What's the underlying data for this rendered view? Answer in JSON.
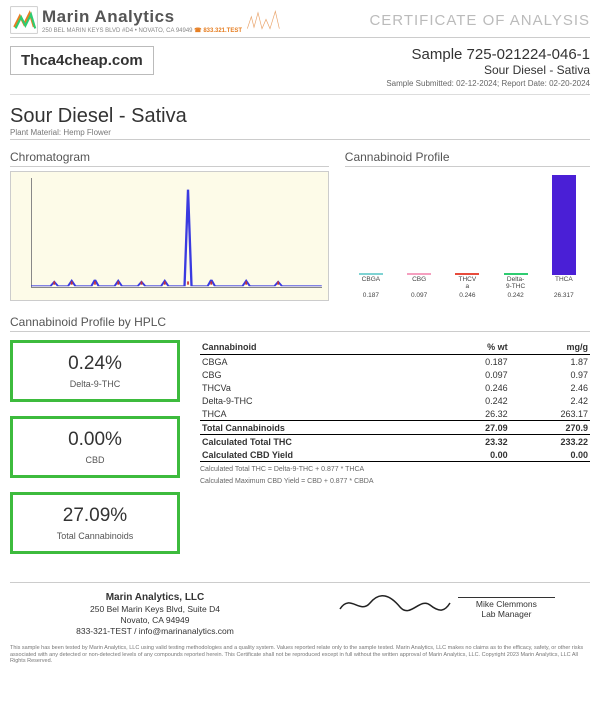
{
  "header": {
    "brand_name": "Marin Analytics",
    "brand_addr": "250 BEL MARIN KEYS BLVD #D4 • NOVATO, CA 94949 ",
    "brand_phone": "☎ 833.321.TEST",
    "coa": "CERTIFICATE OF ANALYSIS",
    "logo_colors": {
      "a": "#e67e22",
      "b": "#2ecc71",
      "c": "#555555"
    }
  },
  "sample": {
    "client": "Thca4cheap.com",
    "id": "Sample 725-021224-046-1",
    "strain": "Sour Diesel - Sativa",
    "dates": "Sample Submitted: 02-12-2024;  Report Date: 02-20-2024"
  },
  "product": {
    "name": "Sour Diesel - Sativa",
    "sub": "Plant Material: Hemp Flower"
  },
  "panels": {
    "chrom_title": "Chromatogram",
    "profile_title": "Cannabinoid Profile",
    "hplc_title": "Cannabinoid Profile by HPLC"
  },
  "chromatogram": {
    "bg": "#fdfbe8",
    "line_color": "#3a3ae0",
    "peaks_x": [
      0.08,
      0.14,
      0.22,
      0.3,
      0.38,
      0.46,
      0.54,
      0.62,
      0.74,
      0.85
    ],
    "peaks_h": [
      0.04,
      0.05,
      0.06,
      0.05,
      0.04,
      0.05,
      0.95,
      0.06,
      0.05,
      0.04
    ],
    "label_color": "#c33"
  },
  "profile_bars": {
    "max": 26.317,
    "items": [
      {
        "label": "CBGA",
        "value": 0.187,
        "color": "#7fd3d3"
      },
      {
        "label": "CBG",
        "value": 0.097,
        "color": "#f59fbf"
      },
      {
        "label": "THCV\na",
        "value": 0.246,
        "color": "#e74c3c"
      },
      {
        "label": "Delta-\n9-THC",
        "value": 0.242,
        "color": "#2ecc71"
      },
      {
        "label": "THCA",
        "value": 26.317,
        "color": "#4a1fd6"
      }
    ]
  },
  "stats": [
    {
      "value": "0.24%",
      "label": "Delta-9-THC"
    },
    {
      "value": "0.00%",
      "label": "CBD"
    },
    {
      "value": "27.09%",
      "label": "Total Cannabinoids"
    }
  ],
  "stat_border": "#3dbb3d",
  "table": {
    "headers": [
      "Cannabinoid",
      "% wt",
      "mg/g"
    ],
    "rows": [
      [
        "CBGA",
        "0.187",
        "1.87"
      ],
      [
        "CBG",
        "0.097",
        "0.97"
      ],
      [
        "THCVa",
        "0.246",
        "2.46"
      ],
      [
        "Delta-9-THC",
        "0.242",
        "2.42"
      ],
      [
        "THCA",
        "26.32",
        "263.17"
      ]
    ],
    "total": [
      "Total Cannabinoids",
      "27.09",
      "270.9"
    ],
    "calc_thc": [
      "Calculated Total THC",
      "23.32",
      "233.22"
    ],
    "calc_cbd": [
      "Calculated CBD Yield",
      "0.00",
      "0.00"
    ],
    "formula1": "Calculated Total THC = Delta-9-THC + 0.877 * THCA",
    "formula2": "Calculated Maximum CBD Yield = CBD + 0.877 * CBDA"
  },
  "footer": {
    "company_name": "Marin Analytics, LLC",
    "addr1": "250 Bel Marin Keys Blvd, Suite D4",
    "addr2": "Novato, CA 94949",
    "contact": "833-321-TEST / info@marinanalytics.com",
    "signer_name": "Mike Clemmons",
    "signer_title": "Lab Manager"
  },
  "disclaimer": "This sample has been tested by Marin Analytics, LLC using valid testing methodologies and a quality system. Values reported relate only to the sample tested. Marin Analytics, LLC makes no claims as to the efficacy, safety, or other risks associated with any detected or non-detected levels of any compounds reported herein. This Certificate shall not be reproduced except in full without the written approval of Marin Analytics, LLC.   Copyright 2023 Marin Analytics, LLC All Rights Reserved."
}
